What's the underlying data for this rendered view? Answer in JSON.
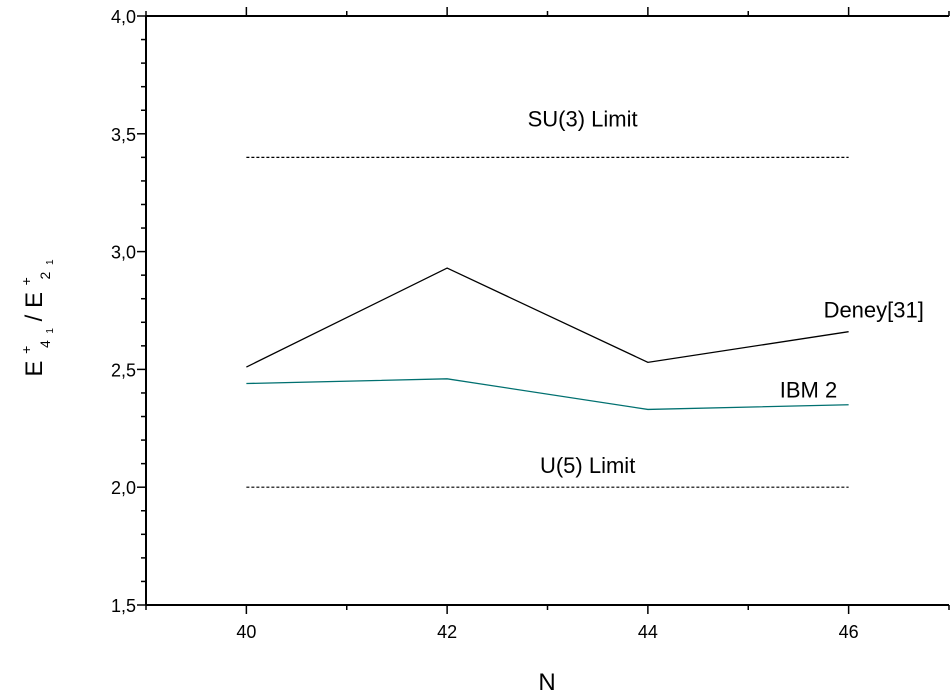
{
  "chart_data": {
    "type": "line",
    "xlabel": "N",
    "ylabel": {
      "parts": [
        "E",
        "+",
        "4",
        "1",
        " / E",
        "+",
        "2",
        "1"
      ]
    },
    "xlim": [
      39,
      47
    ],
    "ylim": [
      1.5,
      4.0
    ],
    "xticks": [
      40,
      42,
      44,
      46
    ],
    "xtick_labels": [
      "40",
      "42",
      "44",
      "46"
    ],
    "yticks": [
      1.5,
      2.0,
      2.5,
      3.0,
      3.5,
      4.0
    ],
    "ytick_labels": [
      "1,5",
      "2,0",
      "2,5",
      "3,0",
      "3,5",
      "4,0"
    ],
    "grid": false,
    "series": [
      {
        "name": "Deney[31]",
        "x": [
          40,
          42,
          44,
          46
        ],
        "y": [
          2.51,
          2.93,
          2.53,
          2.66
        ],
        "color": "#000000",
        "style": "solid"
      },
      {
        "name": "IBM 2",
        "x": [
          40,
          42,
          44,
          46
        ],
        "y": [
          2.44,
          2.46,
          2.33,
          2.35
        ],
        "color": "#007070",
        "style": "solid"
      },
      {
        "name": "SU(3) Limit",
        "x": [
          40,
          46
        ],
        "y": [
          3.4,
          3.4
        ],
        "color": "#000000",
        "style": "dashed"
      },
      {
        "name": "U(5) Limit",
        "x": [
          40,
          46
        ],
        "y": [
          2.0,
          2.0
        ],
        "color": "#000000",
        "style": "dashed"
      }
    ],
    "annotations": [
      {
        "text": "SU(3) Limit",
        "x": 43.35,
        "y": 3.53
      },
      {
        "text": "Deney[31]",
        "x": 46.25,
        "y": 2.72
      },
      {
        "text": "IBM 2",
        "x": 45.6,
        "y": 2.38
      },
      {
        "text": "U(5) Limit",
        "x": 43.4,
        "y": 2.06
      }
    ]
  }
}
